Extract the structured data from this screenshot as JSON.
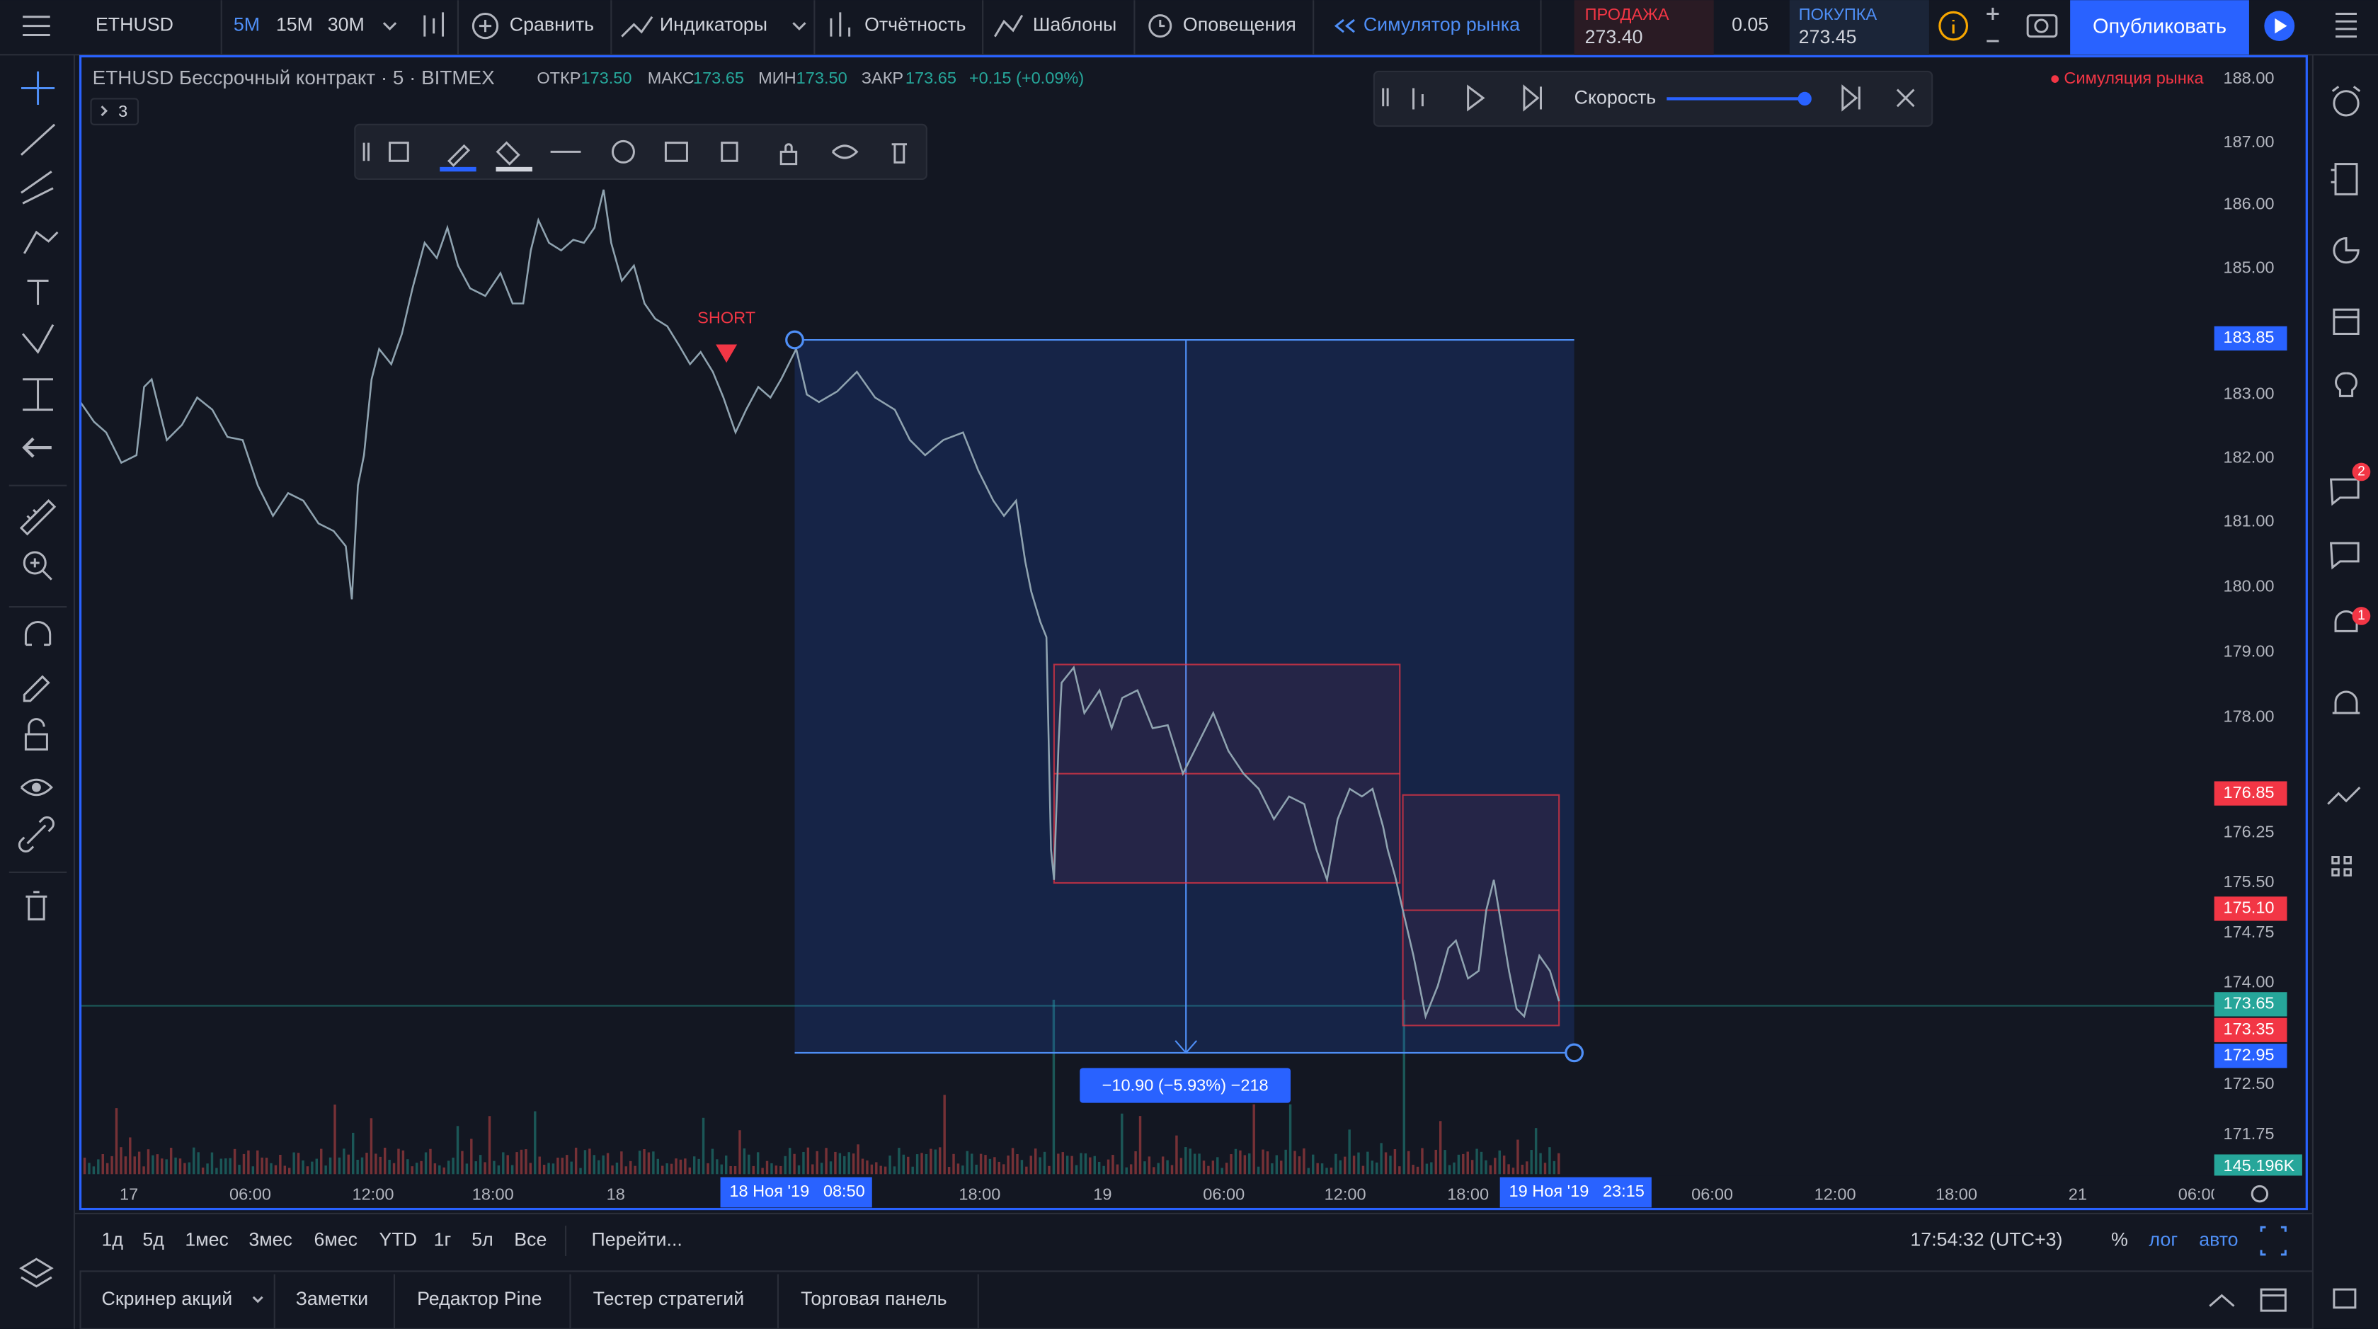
{
  "toolbar": {
    "symbol": "ETHUSD",
    "intervals": [
      "5М",
      "15М",
      "30М"
    ],
    "compare": "Сравнить",
    "indicators": "Индикаторы",
    "reports": "Отчётность",
    "templates": "Шаблоны",
    "alerts": "Оповещения",
    "replay": "Симулятор рынка",
    "sell_label": "ПРОДАЖА",
    "sell_price": "273.40",
    "spread": "0.05",
    "buy_label": "ПОКУПКА",
    "buy_price": "273.45",
    "publish": "Опубликовать"
  },
  "legend": {
    "title": "ETHUSD Бессрочный контракт · 5 · BITMEX",
    "open_label": "ОТКР",
    "open": "173.50",
    "high_label": "МАКС",
    "high": "173.65",
    "low_label": "МИН",
    "low": "173.50",
    "close_label": "ЗАКР",
    "close": "173.65",
    "change": "+0.15 (+0.09%)",
    "indicators_count": "3"
  },
  "replay_bar": {
    "speed": "Скорость",
    "status": "Симуляция рынка"
  },
  "drawing": {
    "signal": "SHORT",
    "measure": "−10.90 (−5.93%) −218"
  },
  "price_axis": {
    "ticks": [
      "188.00",
      "187.00",
      "186.00",
      "185.00",
      "183.00",
      "182.00",
      "181.00",
      "180.00",
      "179.00",
      "178.00",
      "176.25",
      "175.50",
      "174.75",
      "174.00",
      "172.50",
      "171.75"
    ],
    "badges": [
      "183.85",
      "176.85",
      "175.10",
      "173.65",
      "173.35",
      "172.95",
      "145.196K"
    ]
  },
  "time_axis": {
    "ticks": [
      "17",
      "06:00",
      "12:00",
      "18:00",
      "18",
      "18:00",
      "19",
      "06:00",
      "12:00",
      "18:00",
      "06:00",
      "12:00",
      "18:00",
      "21",
      "06:00"
    ],
    "range_start": "18 Ноя '19   08:50",
    "range_end": "19 Ноя '19   23:15"
  },
  "bottom_bar": {
    "ranges": [
      "1д",
      "5д",
      "1мес",
      "3мес",
      "6мес",
      "YTD",
      "1г",
      "5л",
      "Все"
    ],
    "goto": "Перейти...",
    "clock": "17:54:32 (UTC+3)",
    "percent": "%",
    "log": "лог",
    "auto": "авто"
  },
  "panels": {
    "tabs": [
      "Скринер акций",
      "Заметки",
      "Редактор Pine",
      "Тестер стратегий",
      "Торговая панель"
    ]
  },
  "sidebar": {
    "chat_badge": "2",
    "ideas_badge": "1"
  }
}
